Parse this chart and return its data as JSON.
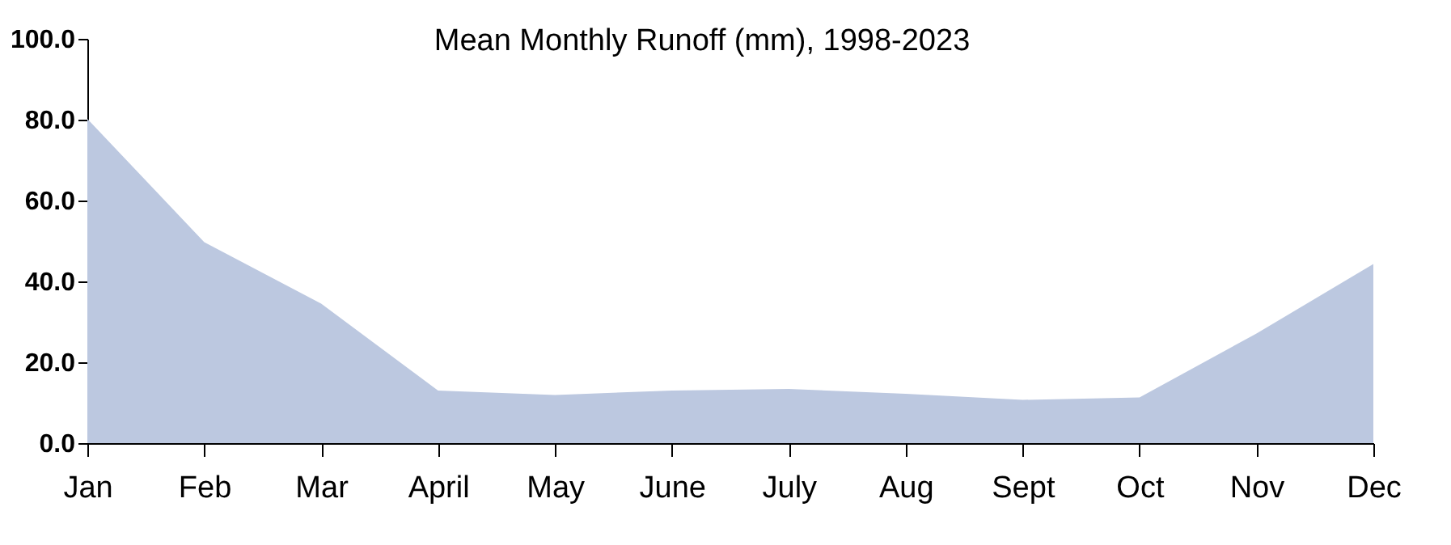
{
  "chart_data": {
    "type": "area",
    "title": "Mean Monthly Runoff (mm), 1998-2023",
    "categories": [
      "Jan",
      "Feb",
      "Mar",
      "April",
      "May",
      "June",
      "July",
      "Aug",
      "Sept",
      "Oct",
      "Nov",
      "Dec"
    ],
    "series": [
      {
        "color": "#bcc8e0",
        "values": [
          80.2,
          49.7,
          34.5,
          13.0,
          11.9,
          13.0,
          13.4,
          12.2,
          10.7,
          11.3,
          27.1,
          44.3
        ]
      }
    ],
    "ylim": [
      0,
      100
    ],
    "yticks": [
      {
        "value": 0,
        "label": "0.0"
      },
      {
        "value": 20,
        "label": "20.0"
      },
      {
        "value": 40,
        "label": "40.0"
      },
      {
        "value": 60,
        "label": "60.0"
      },
      {
        "value": 80,
        "label": "80.0"
      },
      {
        "value": 100,
        "label": "100.0"
      }
    ],
    "grid": false,
    "legend": false
  }
}
